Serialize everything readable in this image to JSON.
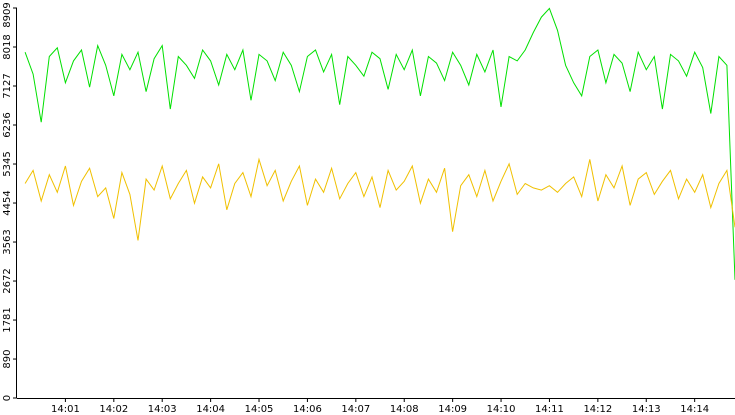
{
  "chart_data": {
    "type": "line",
    "x": [
      "14:00:10",
      "14:00:20",
      "14:00:30",
      "14:00:40",
      "14:00:50",
      "14:01:00",
      "14:01:10",
      "14:01:20",
      "14:01:30",
      "14:01:40",
      "14:01:50",
      "14:02:00",
      "14:02:10",
      "14:02:20",
      "14:02:30",
      "14:02:40",
      "14:02:50",
      "14:03:00",
      "14:03:10",
      "14:03:20",
      "14:03:30",
      "14:03:40",
      "14:03:50",
      "14:04:00",
      "14:04:10",
      "14:04:20",
      "14:04:30",
      "14:04:40",
      "14:04:50",
      "14:05:00",
      "14:05:10",
      "14:05:20",
      "14:05:30",
      "14:05:40",
      "14:05:50",
      "14:06:00",
      "14:06:10",
      "14:06:20",
      "14:06:30",
      "14:06:40",
      "14:06:50",
      "14:07:00",
      "14:07:10",
      "14:07:20",
      "14:07:30",
      "14:07:40",
      "14:07:50",
      "14:08:00",
      "14:08:10",
      "14:08:20",
      "14:08:30",
      "14:08:40",
      "14:08:50",
      "14:09:00",
      "14:09:10",
      "14:09:20",
      "14:09:30",
      "14:09:40",
      "14:09:50",
      "14:10:00",
      "14:10:10",
      "14:10:20",
      "14:10:30",
      "14:10:40",
      "14:10:50",
      "14:11:00",
      "14:11:10",
      "14:11:20",
      "14:11:30",
      "14:11:40",
      "14:11:50",
      "14:12:00",
      "14:12:10",
      "14:12:20",
      "14:12:30",
      "14:12:40",
      "14:12:50",
      "14:13:00",
      "14:13:10",
      "14:13:20",
      "14:13:30",
      "14:13:40",
      "14:13:50",
      "14:14:00",
      "14:14:10",
      "14:14:20",
      "14:14:30",
      "14:14:40",
      "14:14:50"
    ],
    "series": [
      {
        "color": "#00e000",
        "values": [
          7900,
          7400,
          6300,
          7800,
          8000,
          7200,
          7700,
          7950,
          7100,
          8050,
          7600,
          6900,
          7850,
          7500,
          7900,
          7000,
          7750,
          8050,
          6600,
          7800,
          7600,
          7300,
          7950,
          7700,
          7150,
          7850,
          7500,
          7950,
          6800,
          7850,
          7700,
          7250,
          7900,
          7600,
          7000,
          7800,
          7950,
          7450,
          7850,
          6700,
          7800,
          7600,
          7350,
          7900,
          7750,
          7050,
          7850,
          7500,
          7950,
          6900,
          7800,
          7650,
          7250,
          7900,
          7600,
          7150,
          7850,
          7450,
          7950,
          6650,
          7800,
          7700,
          7950,
          8350,
          8700,
          8900,
          8400,
          7600,
          7200,
          6900,
          7800,
          7950,
          7200,
          7850,
          7650,
          7000,
          7900,
          7500,
          7800,
          6600,
          7850,
          7700,
          7350,
          7900,
          7550,
          6500,
          7800,
          7600,
          2700
        ]
      },
      {
        "color": "#f0c000",
        "values": [
          4900,
          5200,
          4500,
          5100,
          4700,
          5300,
          4400,
          4950,
          5250,
          4600,
          4800,
          4100,
          5150,
          4650,
          3600,
          5000,
          4750,
          5300,
          4550,
          4900,
          5200,
          4450,
          5050,
          4800,
          5350,
          4300,
          4900,
          5150,
          4600,
          5450,
          4850,
          5200,
          4500,
          4950,
          5300,
          4400,
          5000,
          4700,
          5250,
          4550,
          4900,
          5150,
          4600,
          5050,
          4350,
          5200,
          4750,
          4950,
          5300,
          4450,
          5000,
          4700,
          5250,
          3800,
          4850,
          5100,
          4600,
          5200,
          4500,
          4950,
          5350,
          4650,
          4900,
          4800,
          4750,
          4850,
          4700,
          4900,
          5050,
          4600,
          5450,
          4500,
          5100,
          4800,
          5300,
          4400,
          5000,
          5150,
          4650,
          4950,
          5200,
          4550,
          5000,
          4700,
          5100,
          4350,
          4900,
          5200,
          3900
        ]
      }
    ],
    "xlim": [
      "14:00:00",
      "14:14:50"
    ],
    "xticks": [
      {
        "value": "14:01:00",
        "label": "14:01"
      },
      {
        "value": "14:02:00",
        "label": "14:02"
      },
      {
        "value": "14:03:00",
        "label": "14:03"
      },
      {
        "value": "14:04:00",
        "label": "14:04"
      },
      {
        "value": "14:05:00",
        "label": "14:05"
      },
      {
        "value": "14:06:00",
        "label": "14:06"
      },
      {
        "value": "14:07:00",
        "label": "14:07"
      },
      {
        "value": "14:08:00",
        "label": "14:08"
      },
      {
        "value": "14:09:00",
        "label": "14:09"
      },
      {
        "value": "14:10:00",
        "label": "14:10"
      },
      {
        "value": "14:11:00",
        "label": "14:11"
      },
      {
        "value": "14:12:00",
        "label": "14:12"
      },
      {
        "value": "14:13:00",
        "label": "14:13"
      },
      {
        "value": "14:14:00",
        "label": "14:14"
      }
    ],
    "ylim": [
      0,
      8909
    ],
    "yticks": [
      0,
      890,
      1781,
      2672,
      3563,
      4454,
      5345,
      6236,
      7127,
      8018,
      8909
    ]
  }
}
